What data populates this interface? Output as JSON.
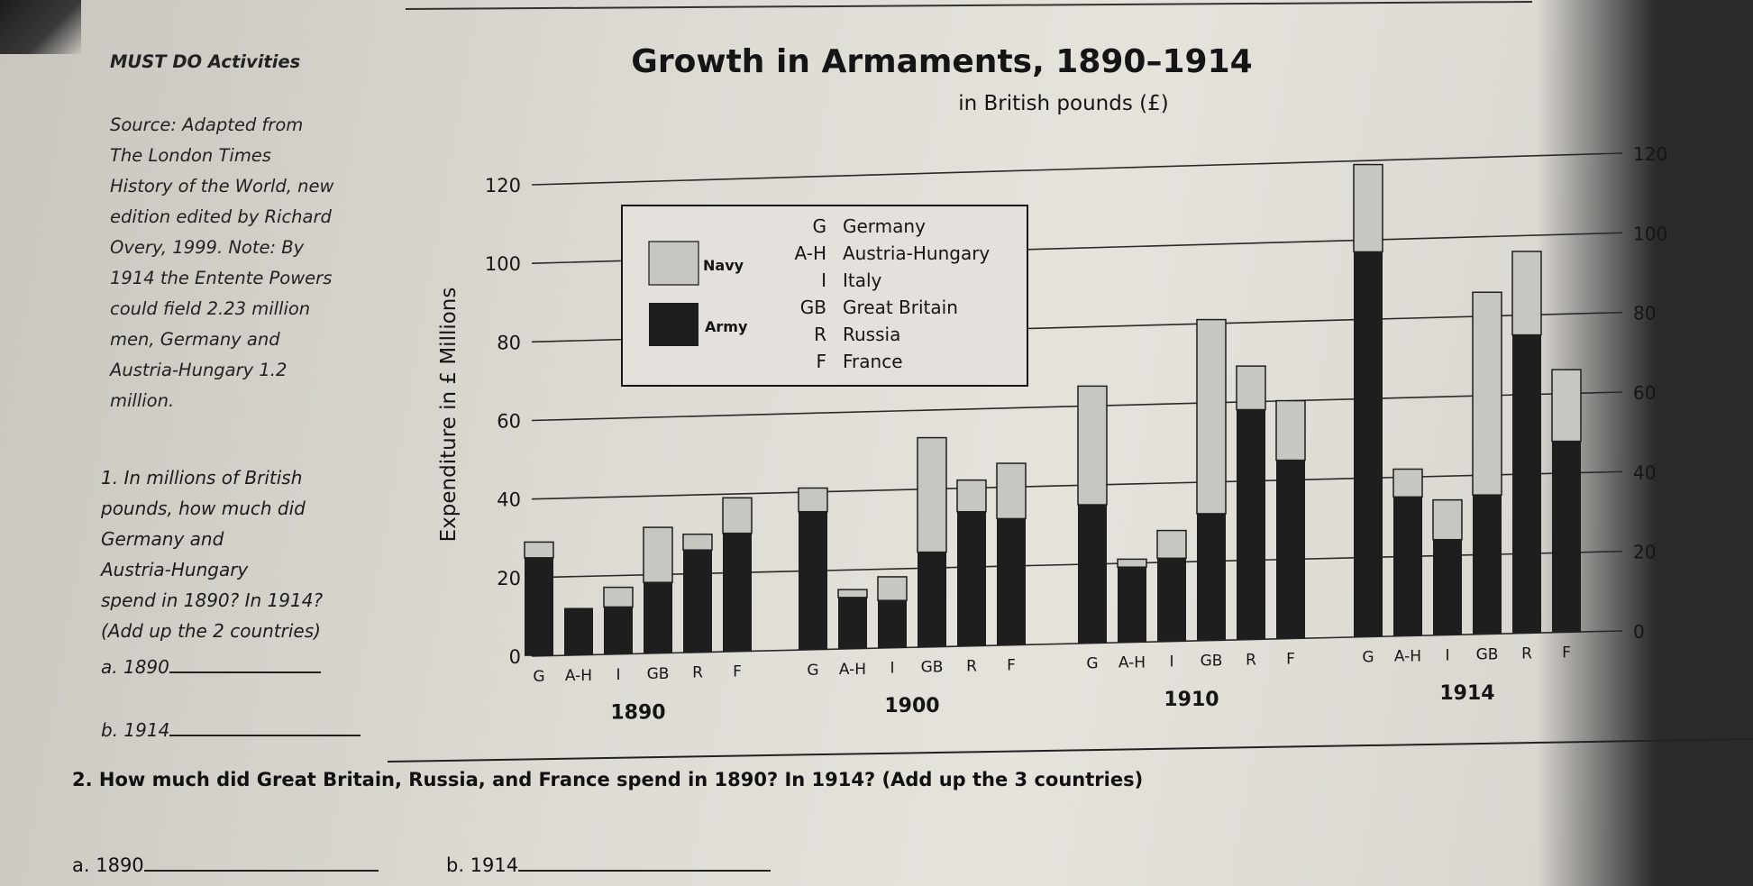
{
  "sidebar": {
    "heading": "MUST DO Activities",
    "source_lines": "Source: Adapted from\nThe London Times\nHistory of the World, new\nedition edited by Richard\nOvery, 1999. Note: By\n1914 the Entente Powers\ncould field 2.23 million\nmen, Germany and\nAustria-Hungary 1.2\nmillion.",
    "question1": "1. In millions of British\npounds, how much did\nGermany and\nAustria-Hungary\nspend in 1890? In 1914?\n(Add up the 2 countries)",
    "q1a_label": "a. 1890",
    "q1b_label": "b. 1914"
  },
  "question2": {
    "text": "2. How much did Great Britain, Russia, and France spend in 1890? In 1914? (Add up the 3 countries)",
    "a_label": "a. 1890",
    "b_label": "b. 1914"
  },
  "colors": {
    "army": "#1e1e1e",
    "navy": "#c7c7c2",
    "ink": "#151515"
  },
  "chart_data": {
    "type": "bar",
    "title": "Growth in Armaments, 1890–1914",
    "subtitle": "in British pounds (£)",
    "ylabel": "Expenditure in £ Millions",
    "ylim": [
      0,
      120
    ],
    "left_ticks": [
      "0",
      "20",
      "40",
      "60",
      "80",
      "100",
      "120"
    ],
    "right_ticks": [
      "0",
      "20",
      "40",
      "60",
      "80",
      "100",
      "120"
    ],
    "stacked": true,
    "series": [
      {
        "name": "Army",
        "key": "army"
      },
      {
        "name": "Navy",
        "key": "navy"
      }
    ],
    "legend": {
      "navy_label": "Navy",
      "army_label": "Army",
      "countries": [
        {
          "abbr": "G",
          "name": "Germany"
        },
        {
          "abbr": "A-H",
          "name": "Austria-Hungary"
        },
        {
          "abbr": "I",
          "name": "Italy"
        },
        {
          "abbr": "GB",
          "name": "Great Britain"
        },
        {
          "abbr": "R",
          "name": "Russia"
        },
        {
          "abbr": "F",
          "name": "France"
        }
      ]
    },
    "groups": [
      {
        "year": "1890",
        "bars": [
          {
            "country": "G",
            "army": 25,
            "navy": 4
          },
          {
            "country": "A-H",
            "army": 12,
            "navy": 0
          },
          {
            "country": "I",
            "army": 12,
            "navy": 5
          },
          {
            "country": "GB",
            "army": 18,
            "navy": 14
          },
          {
            "country": "R",
            "army": 26,
            "navy": 4
          },
          {
            "country": "F",
            "army": 30,
            "navy": 9
          }
        ]
      },
      {
        "year": "1900",
        "bars": [
          {
            "country": "G",
            "army": 35,
            "navy": 6
          },
          {
            "country": "A-H",
            "army": 13,
            "navy": 2
          },
          {
            "country": "I",
            "army": 12,
            "navy": 6
          },
          {
            "country": "GB",
            "army": 24,
            "navy": 29
          },
          {
            "country": "R",
            "army": 34,
            "navy": 8
          },
          {
            "country": "F",
            "army": 32,
            "navy": 14
          }
        ]
      },
      {
        "year": "1910",
        "bars": [
          {
            "country": "G",
            "army": 35,
            "navy": 30
          },
          {
            "country": "A-H",
            "army": 19,
            "navy": 2
          },
          {
            "country": "I",
            "army": 21,
            "navy": 7
          },
          {
            "country": "GB",
            "army": 32,
            "navy": 49
          },
          {
            "country": "R",
            "army": 58,
            "navy": 11
          },
          {
            "country": "F",
            "army": 45,
            "navy": 15
          }
        ]
      },
      {
        "year": "1914",
        "bars": [
          {
            "country": "G",
            "army": 97,
            "navy": 22
          },
          {
            "country": "A-H",
            "army": 35,
            "navy": 7
          },
          {
            "country": "I",
            "army": 24,
            "navy": 10
          },
          {
            "country": "GB",
            "army": 35,
            "navy": 51
          },
          {
            "country": "R",
            "army": 75,
            "navy": 21
          },
          {
            "country": "F",
            "army": 48,
            "navy": 18
          }
        ]
      }
    ]
  }
}
